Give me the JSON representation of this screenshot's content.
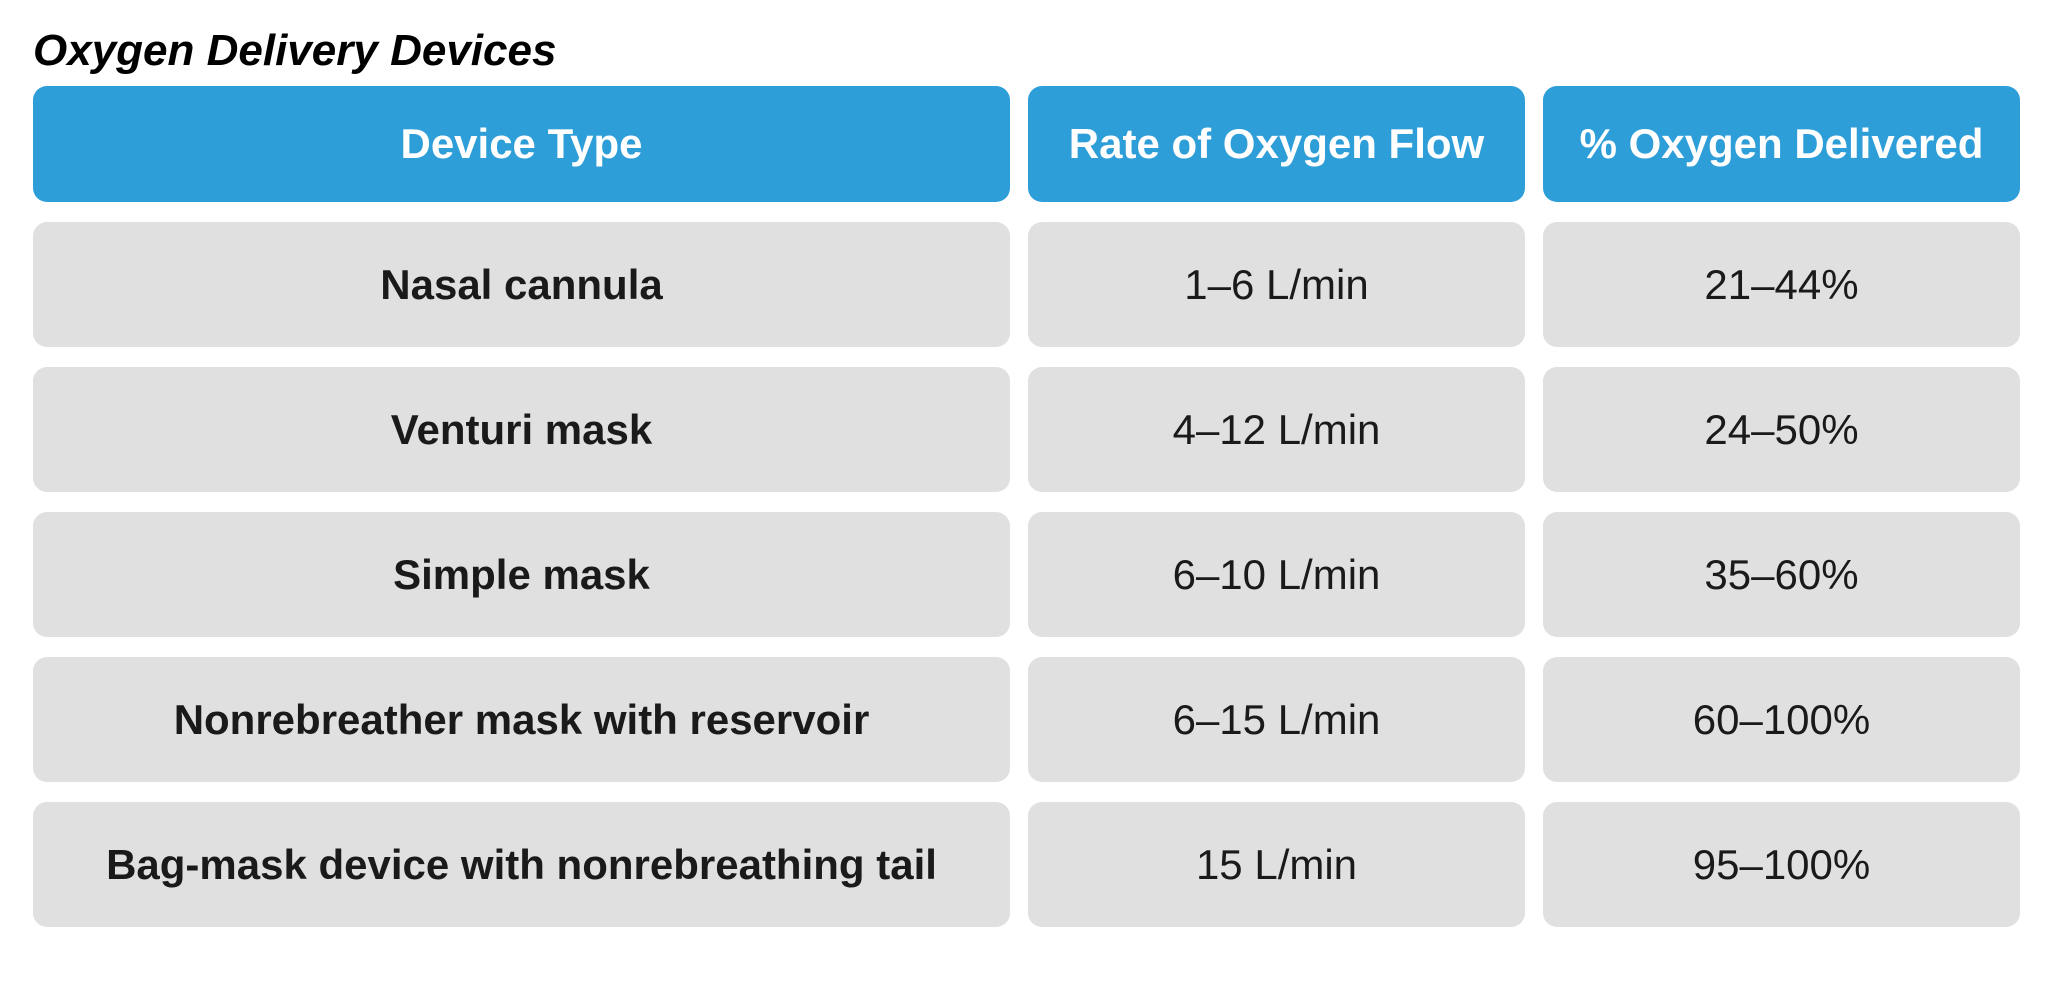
{
  "chart_data": {
    "type": "table",
    "title": "Oxygen Delivery Devices",
    "columns": [
      "Device Type",
      "Rate of Oxygen Flow",
      "% Oxygen Delivered"
    ],
    "rows": [
      [
        "Nasal cannula",
        "1–6 L/min",
        "21–44%"
      ],
      [
        "Venturi mask",
        "4–12 L/min",
        "24–50%"
      ],
      [
        "Simple mask",
        "6–10 L/min",
        "35–60%"
      ],
      [
        "Nonrebreather mask with reservoir",
        "6–15 L/min",
        "60–100%"
      ],
      [
        "Bag-mask device with nonrebreathing tail",
        "15 L/min",
        "95–100%"
      ]
    ],
    "layout": {
      "legend": "none",
      "grid": "off",
      "header_position": "top"
    }
  },
  "colors": {
    "page_bg": "#ffffff",
    "header_bg": "#2e9ed9",
    "header_text": "#ffffff",
    "cell_bg": "#e0e0e0",
    "cell_text": "#1a1a1a",
    "title_text": "#000000"
  }
}
